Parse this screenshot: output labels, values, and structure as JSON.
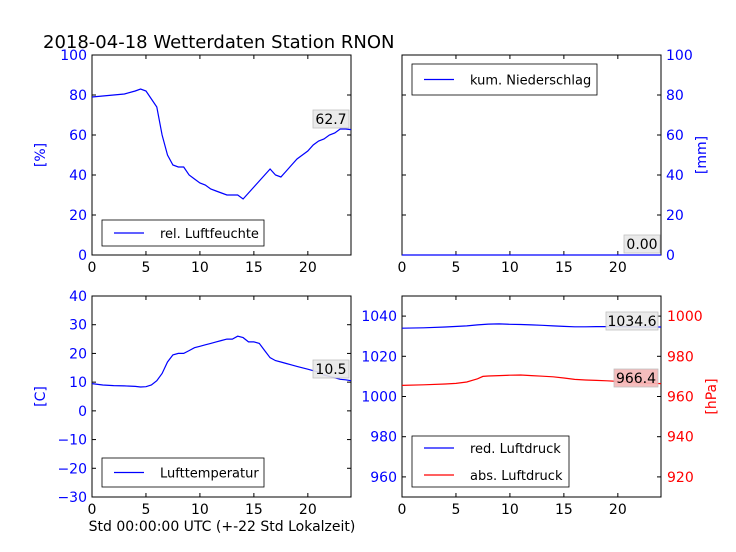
{
  "figure": {
    "title": "2018-04-18 Wetterdaten Station RNON",
    "xlabel": "Std 00:00:00 UTC (+-22 Std Lokalzeit)"
  },
  "colors": {
    "blue": "#0000ff",
    "red": "#ff0000",
    "black": "#000000",
    "red_label_bg": "#f4b6b6",
    "label_bg": "#e8e8e8"
  },
  "chart_data": [
    {
      "id": "humidity",
      "type": "line",
      "xlim": [
        0,
        24
      ],
      "ylim": [
        0,
        100
      ],
      "xticks": [
        "0",
        "5",
        "10",
        "15",
        "20"
      ],
      "yticks": [
        "0",
        "20",
        "40",
        "60",
        "80",
        "100"
      ],
      "ylabel": "[%]",
      "legend": [
        "rel. Luftfeuchte"
      ],
      "legend_position": "lower-left",
      "annotation": "62.7",
      "series": [
        {
          "name": "rel. Luftfeuchte",
          "color": "#0000ff",
          "x": [
            0,
            1,
            2,
            3,
            4,
            4.5,
            5,
            5.5,
            6,
            6.5,
            7,
            7.5,
            8,
            8.5,
            9,
            9.5,
            10,
            10.5,
            11,
            11.5,
            12,
            12.5,
            13,
            13.5,
            14,
            14.5,
            15,
            15.5,
            16,
            16.5,
            17,
            17.5,
            18,
            18.5,
            19,
            19.5,
            20,
            20.5,
            21,
            21.5,
            22,
            22.5,
            23,
            23.5,
            24
          ],
          "y": [
            79,
            79.5,
            80,
            80.5,
            82,
            83,
            82,
            78,
            74,
            60,
            50,
            45,
            44,
            44,
            40,
            38,
            36,
            35,
            33,
            32,
            31,
            30,
            30,
            30,
            28,
            31,
            34,
            37,
            40,
            43,
            40,
            39,
            42,
            45,
            48,
            50,
            52,
            55,
            57,
            58,
            60,
            61,
            63,
            63,
            62.7
          ]
        }
      ]
    },
    {
      "id": "precipitation",
      "type": "line",
      "xlim": [
        0,
        24
      ],
      "ylim": [
        0,
        100
      ],
      "xticks": [
        "0",
        "5",
        "10",
        "15",
        "20"
      ],
      "yticks": [
        "0",
        "20",
        "40",
        "60",
        "80",
        "100"
      ],
      "ylabel": "[mm]",
      "legend": [
        "kum. Niederschlag"
      ],
      "legend_position": "upper-left",
      "annotation": "0.00",
      "series": [
        {
          "name": "kum. Niederschlag",
          "color": "#0000ff",
          "x": [
            0,
            24
          ],
          "y": [
            0,
            0
          ]
        }
      ]
    },
    {
      "id": "temperature",
      "type": "line",
      "xlim": [
        0,
        24
      ],
      "ylim": [
        -30,
        40
      ],
      "xticks": [
        "0",
        "5",
        "10",
        "15",
        "20"
      ],
      "yticks": [
        "−30",
        "−20",
        "−10",
        "0",
        "10",
        "20",
        "30",
        "40"
      ],
      "ylabel": "[C]",
      "legend": [
        "Lufttemperatur"
      ],
      "legend_position": "lower-left",
      "annotation": "10.5",
      "series": [
        {
          "name": "Lufttemperatur",
          "color": "#0000ff",
          "x": [
            0,
            1,
            2,
            3,
            4,
            4.5,
            5,
            5.5,
            6,
            6.5,
            7,
            7.5,
            8,
            8.5,
            9,
            9.5,
            10,
            10.5,
            11,
            11.5,
            12,
            12.5,
            13,
            13.5,
            14,
            14.5,
            15,
            15.5,
            16,
            16.5,
            17,
            17.5,
            18,
            18.5,
            19,
            19.5,
            20,
            20.5,
            21,
            21.5,
            22,
            22.5,
            23,
            23.5,
            24
          ],
          "y": [
            9.5,
            9,
            8.8,
            8.7,
            8.5,
            8.3,
            8.4,
            9,
            10.5,
            13,
            17,
            19.5,
            20,
            20,
            21,
            22,
            22.5,
            23,
            23.5,
            24,
            24.5,
            25,
            25,
            26,
            25.5,
            24,
            24,
            23.5,
            21,
            18.5,
            17.5,
            17,
            16.5,
            16,
            15.5,
            15,
            14.5,
            14,
            13.5,
            12.5,
            12,
            11.5,
            11,
            10.8,
            10.5
          ]
        }
      ]
    },
    {
      "id": "pressure",
      "type": "line",
      "xlim": [
        0,
        24
      ],
      "ylim": [
        950,
        1050
      ],
      "ylim_right": [
        910,
        1010
      ],
      "xticks": [
        "0",
        "5",
        "10",
        "15",
        "20"
      ],
      "yticks": [
        "960",
        "980",
        "1000",
        "1020",
        "1040"
      ],
      "yticks_right": [
        "920",
        "940",
        "960",
        "980",
        "1000"
      ],
      "ylabel_right": "[hPa]",
      "legend": [
        "red. Luftdruck",
        "abs. Luftdruck"
      ],
      "legend_position": "lower-left",
      "annotations": [
        "1034.6",
        "966.4"
      ],
      "series": [
        {
          "name": "red. Luftdruck",
          "color": "#0000ff",
          "axis": "left",
          "x": [
            0,
            2,
            4,
            6,
            7,
            8,
            9,
            10,
            11,
            12,
            13,
            14,
            15,
            16,
            17,
            18,
            19,
            20,
            21,
            22,
            23,
            24
          ],
          "y": [
            1034,
            1034.2,
            1034.6,
            1035.1,
            1035.6,
            1036,
            1036.1,
            1035.9,
            1035.8,
            1035.6,
            1035.4,
            1035.1,
            1034.9,
            1034.7,
            1034.7,
            1034.8,
            1034.8,
            1034.8,
            1034.7,
            1034.6,
            1034.6,
            1034.6
          ]
        },
        {
          "name": "abs. Luftdruck",
          "color": "#ff0000",
          "axis": "right",
          "x": [
            0,
            2,
            4,
            5,
            6,
            7,
            7.5,
            8,
            9,
            10,
            11,
            12,
            13,
            14,
            15,
            16,
            17,
            18,
            19,
            20,
            21,
            22,
            23,
            24
          ],
          "y": [
            965.5,
            965.8,
            966.2,
            966.5,
            967.2,
            968.8,
            970,
            970.2,
            970.4,
            970.6,
            970.7,
            970.4,
            970.1,
            969.8,
            969.2,
            968.5,
            968.2,
            968,
            967.8,
            967.5,
            967.2,
            966.9,
            966.6,
            966.4
          ]
        }
      ]
    }
  ]
}
